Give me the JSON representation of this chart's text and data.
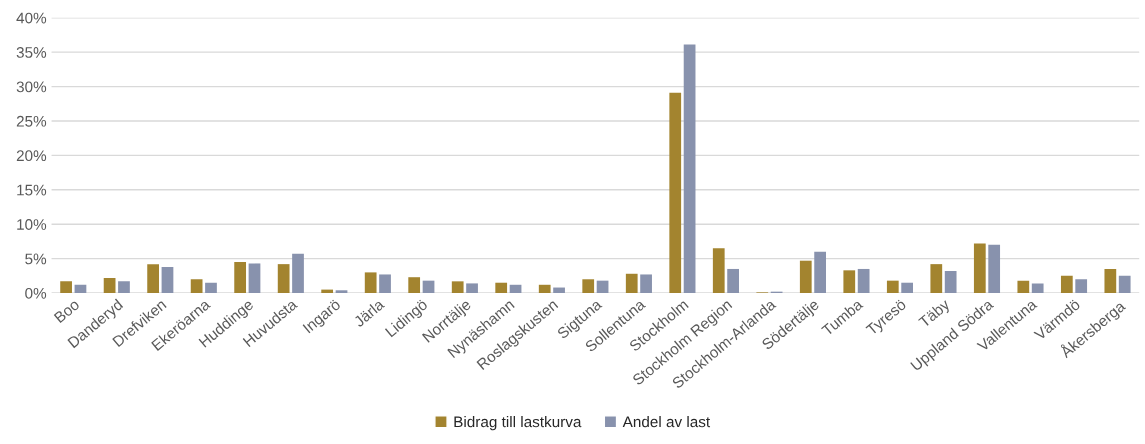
{
  "chart_data": {
    "type": "bar",
    "categories": [
      "Boo",
      "Danderyd",
      "Drefviken",
      "Ekeröarna",
      "Huddinge",
      "Huvudsta",
      "Ingarö",
      "Järla",
      "Lidingö",
      "Norrtälje",
      "Nynäshamn",
      "Roslagskusten",
      "Sigtuna",
      "Sollentuna",
      "Stockholm",
      "Stockholm Region",
      "Stockholm-Arlanda",
      "Södertälje",
      "Tumba",
      "Tyresö",
      "Täby",
      "Uppland Södra",
      "Vallentuna",
      "Värmdö",
      "Åkersberga"
    ],
    "series": [
      {
        "name": "Bidrag till lastkurva",
        "color": "#a3842f",
        "values": [
          1.7,
          2.2,
          4.2,
          2.0,
          4.5,
          4.2,
          0.5,
          3.0,
          2.3,
          1.7,
          1.5,
          1.2,
          2.0,
          2.8,
          29.1,
          6.5,
          0.1,
          4.7,
          3.3,
          1.8,
          4.2,
          7.2,
          1.8,
          2.5,
          3.5
        ]
      },
      {
        "name": "Andel av last",
        "color": "#8892ad",
        "values": [
          1.2,
          1.7,
          3.8,
          1.5,
          4.3,
          5.7,
          0.4,
          2.7,
          1.8,
          1.4,
          1.2,
          0.8,
          1.8,
          2.7,
          36.1,
          3.5,
          0.2,
          6.0,
          3.5,
          1.5,
          3.2,
          7.0,
          1.4,
          2.0,
          2.5
        ]
      }
    ],
    "ylim": [
      0,
      40
    ],
    "yticks": [
      {
        "value": 0,
        "label": "0%"
      },
      {
        "value": 5,
        "label": "5%"
      },
      {
        "value": 10,
        "label": "10%"
      },
      {
        "value": 15,
        "label": "15%"
      },
      {
        "value": 20,
        "label": "20%"
      },
      {
        "value": 25,
        "label": "25%"
      },
      {
        "value": 30,
        "label": "30%"
      },
      {
        "value": 35,
        "label": "35%"
      },
      {
        "value": 40,
        "label": "40%"
      }
    ],
    "grid": "y",
    "legend": "bottom"
  }
}
